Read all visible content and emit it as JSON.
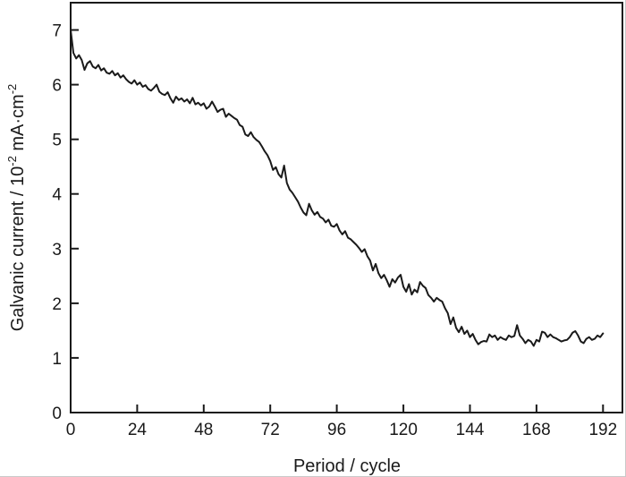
{
  "figure": {
    "background_color": "#ffffff",
    "frame_color": "#c9c9c9"
  },
  "chart_data": {
    "type": "line",
    "title": "",
    "xlabel": "Period / cycle",
    "ylabel": "Galvanic current / 10⁻² mA·cm⁻²",
    "ylabel_parts": [
      {
        "t": "Galvanic current / 10"
      },
      {
        "t": "-2",
        "sup": true
      },
      {
        "t": " mA·cm"
      },
      {
        "t": "-2",
        "sup": true
      }
    ],
    "xlim": [
      0,
      199
    ],
    "ylim": [
      0,
      7.5
    ],
    "x_ticks": [
      0,
      24,
      48,
      72,
      96,
      120,
      144,
      168,
      192
    ],
    "y_ticks": [
      0,
      1,
      2,
      3,
      4,
      5,
      6,
      7
    ],
    "grid": false,
    "legend": null,
    "line_color": "#1a1a1a",
    "axis_color": "#1a1a1a",
    "series": [
      {
        "name": "galvanic-current",
        "x_start": 0,
        "x_step": 1,
        "values": [
          7.0,
          6.58,
          6.48,
          6.54,
          6.45,
          6.27,
          6.39,
          6.43,
          6.33,
          6.3,
          6.36,
          6.26,
          6.3,
          6.22,
          6.2,
          6.25,
          6.17,
          6.21,
          6.13,
          6.17,
          6.1,
          6.05,
          6.02,
          6.08,
          6.0,
          6.04,
          5.96,
          5.99,
          5.92,
          5.89,
          5.94,
          6.0,
          5.87,
          5.83,
          5.81,
          5.86,
          5.75,
          5.67,
          5.78,
          5.72,
          5.75,
          5.69,
          5.73,
          5.66,
          5.76,
          5.64,
          5.67,
          5.62,
          5.66,
          5.56,
          5.6,
          5.69,
          5.6,
          5.5,
          5.54,
          5.56,
          5.41,
          5.47,
          5.43,
          5.39,
          5.36,
          5.26,
          5.23,
          5.09,
          5.06,
          5.13,
          5.04,
          4.99,
          4.95,
          4.87,
          4.78,
          4.71,
          4.6,
          4.44,
          4.49,
          4.36,
          4.3,
          4.52,
          4.2,
          4.08,
          4.02,
          3.94,
          3.86,
          3.75,
          3.66,
          3.61,
          3.82,
          3.7,
          3.62,
          3.67,
          3.58,
          3.55,
          3.48,
          3.53,
          3.42,
          3.4,
          3.45,
          3.33,
          3.26,
          3.32,
          3.2,
          3.17,
          3.12,
          3.07,
          3.01,
          2.94,
          2.99,
          2.86,
          2.78,
          2.6,
          2.72,
          2.55,
          2.46,
          2.52,
          2.42,
          2.3,
          2.44,
          2.38,
          2.47,
          2.52,
          2.3,
          2.21,
          2.35,
          2.16,
          2.25,
          2.2,
          2.39,
          2.32,
          2.28,
          2.15,
          2.1,
          2.03,
          2.1,
          2.06,
          2.03,
          1.91,
          1.82,
          1.62,
          1.74,
          1.55,
          1.47,
          1.57,
          1.44,
          1.5,
          1.38,
          1.44,
          1.33,
          1.25,
          1.29,
          1.31,
          1.3,
          1.43,
          1.38,
          1.41,
          1.33,
          1.38,
          1.35,
          1.33,
          1.41,
          1.38,
          1.4,
          1.6,
          1.41,
          1.35,
          1.27,
          1.33,
          1.3,
          1.22,
          1.33,
          1.3,
          1.48,
          1.46,
          1.38,
          1.43,
          1.38,
          1.36,
          1.33,
          1.3,
          1.32,
          1.33,
          1.38,
          1.46,
          1.49,
          1.41,
          1.3,
          1.27,
          1.35,
          1.38,
          1.33,
          1.35,
          1.41,
          1.38,
          1.45
        ]
      }
    ]
  }
}
